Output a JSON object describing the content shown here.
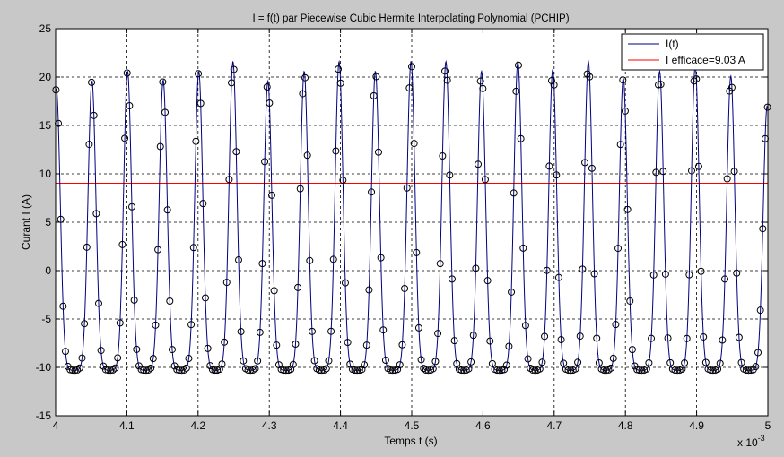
{
  "chart_data": {
    "type": "line",
    "title": "I = f(t) par Piecewise Cubic Hermite Interpolating Polynomial (PCHIP)",
    "xlabel": "Temps t (s)",
    "ylabel": "Curant I (A)",
    "x_exponent_label": "x 10",
    "x_exponent_power": "-3",
    "xlim": [
      4.0,
      5.0
    ],
    "ylim": [
      -15,
      25
    ],
    "grid": true,
    "legend_position": "top-right",
    "x_ticks": [
      4,
      4.1,
      4.2,
      4.3,
      4.4,
      4.5,
      4.6,
      4.7,
      4.8,
      4.9,
      5
    ],
    "x_tick_labels": [
      "4",
      "4.1",
      "4.2",
      "4.3",
      "4.4",
      "4.5",
      "4.6",
      "4.7",
      "4.8",
      "4.9",
      "5"
    ],
    "y_ticks": [
      -15,
      -10,
      -5,
      0,
      5,
      10,
      15,
      20,
      25
    ],
    "y_tick_labels": [
      "-15",
      "-10",
      "-5",
      "0",
      "5",
      "10",
      "15",
      "20",
      "25"
    ],
    "series": [
      {
        "name": "I(t)",
        "color": "#000080",
        "marker": "circle",
        "signal": {
          "peak_times": [
            4.001,
            4.051,
            4.101,
            4.151,
            4.201,
            4.249,
            4.298,
            4.349,
            4.398,
            4.449,
            4.499,
            4.548,
            4.598,
            4.649,
            4.698,
            4.748,
            4.797,
            4.848,
            4.898,
            4.948,
            4.999
          ],
          "peak_values": [
            18.8,
            19.6,
            20.6,
            19.7,
            20.6,
            21.6,
            19.6,
            20.6,
            21.6,
            20.6,
            21.6,
            21.6,
            20.6,
            21.6,
            20.8,
            21.6,
            19.9,
            20.6,
            21.1,
            20.1,
            17
          ],
          "trough_value": -10.3,
          "sample_period": 0.00333
        }
      },
      {
        "name": "I efficace=9.03 A",
        "color": "#ff0000",
        "levels": [
          9.03,
          -9.03
        ]
      }
    ]
  },
  "colors": {
    "figure_background": "#c8c8c8",
    "axes_background": "#ffffff"
  }
}
